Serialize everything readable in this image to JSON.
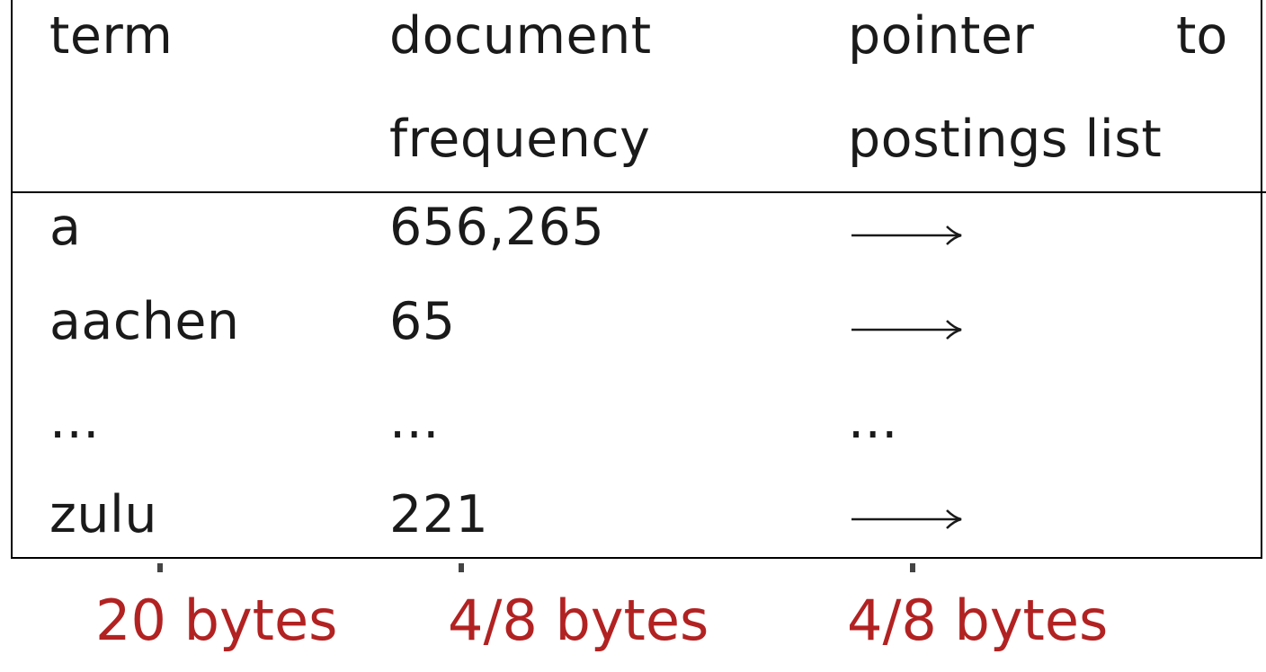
{
  "table": {
    "headers": {
      "term": "term",
      "doc_freq_line1": "document",
      "doc_freq_line2": "frequency",
      "pointer_line1_a": "pointer",
      "pointer_line1_b": "to",
      "pointer_line2": "postings list"
    },
    "rows": [
      {
        "term": "a",
        "frequency": "656,265",
        "pointer": "arrow"
      },
      {
        "term": "aachen",
        "frequency": "65",
        "pointer": "arrow"
      },
      {
        "term": "...",
        "frequency": "...",
        "pointer": "..."
      },
      {
        "term": "zulu",
        "frequency": "221",
        "pointer": "arrow"
      }
    ]
  },
  "sizes": {
    "term": "20 bytes",
    "frequency": "4/8 bytes",
    "pointer": "4/8 bytes"
  },
  "colors": {
    "size_labels": "#b22222",
    "text": "#1a1a1a",
    "rules": "#000000"
  }
}
